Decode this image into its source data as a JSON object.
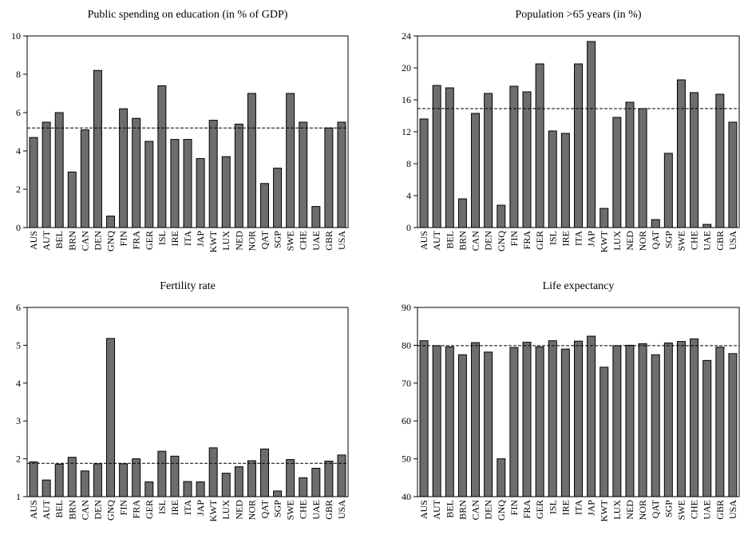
{
  "chart_data": [
    {
      "type": "bar",
      "title": "Public spending on education (in % of GDP)",
      "categories": [
        "AUS",
        "AUT",
        "BEL",
        "BRN",
        "CAN",
        "DEN",
        "GNQ",
        "FIN",
        "FRA",
        "GER",
        "ISL",
        "IRE",
        "ITA",
        "JAP",
        "KWT",
        "LUX",
        "NED",
        "NOR",
        "QAT",
        "SGP",
        "SWE",
        "CHE",
        "UAE",
        "GBR",
        "USA"
      ],
      "values": [
        4.7,
        5.5,
        6.0,
        2.9,
        5.1,
        8.2,
        0.6,
        6.2,
        5.7,
        4.5,
        7.4,
        4.6,
        4.6,
        3.6,
        5.6,
        3.7,
        5.4,
        7.0,
        2.3,
        3.1,
        7.0,
        5.5,
        1.1,
        5.2,
        5.5
      ],
      "ylim": [
        0,
        10
      ],
      "yticks": [
        0,
        2,
        4,
        6,
        8,
        10
      ],
      "reference_line": 5.2
    },
    {
      "type": "bar",
      "title": "Population >65 years (in %)",
      "categories": [
        "AUS",
        "AUT",
        "BEL",
        "BRN",
        "CAN",
        "DEN",
        "GNQ",
        "FIN",
        "FRA",
        "GER",
        "ISL",
        "IRE",
        "ITA",
        "JAP",
        "KWT",
        "LUX",
        "NED",
        "NOR",
        "QAT",
        "SGP",
        "SWE",
        "CHE",
        "UAE",
        "GBR",
        "USA"
      ],
      "values": [
        13.6,
        17.8,
        17.5,
        3.6,
        14.3,
        16.8,
        2.8,
        17.7,
        17.0,
        20.5,
        12.1,
        11.8,
        20.5,
        23.3,
        2.4,
        13.8,
        15.7,
        14.9,
        1.0,
        9.3,
        18.5,
        16.9,
        0.4,
        16.7,
        13.2
      ],
      "ylim": [
        0,
        24
      ],
      "yticks": [
        0,
        4,
        8,
        12,
        16,
        20,
        24
      ],
      "reference_line": 14.9
    },
    {
      "type": "bar",
      "title": "Fertility rate",
      "categories": [
        "AUS",
        "AUT",
        "BEL",
        "BRN",
        "CAN",
        "DEN",
        "GNQ",
        "FIN",
        "FRA",
        "GER",
        "ISL",
        "IRE",
        "ITA",
        "JAP",
        "KWT",
        "LUX",
        "NED",
        "NOR",
        "QAT",
        "SGP",
        "SWE",
        "CHE",
        "UAE",
        "GBR",
        "USA"
      ],
      "values": [
        1.92,
        1.44,
        1.86,
        2.04,
        1.68,
        1.87,
        5.18,
        1.87,
        2.0,
        1.39,
        2.2,
        2.07,
        1.4,
        1.39,
        2.29,
        1.62,
        1.79,
        1.95,
        2.26,
        1.15,
        1.98,
        1.5,
        1.75,
        1.94,
        2.1
      ],
      "ylim": [
        1,
        6
      ],
      "yticks": [
        1,
        2,
        3,
        4,
        5,
        6
      ],
      "reference_line": 1.88
    },
    {
      "type": "bar",
      "title": "Life expectancy",
      "categories": [
        "AUS",
        "AUT",
        "BEL",
        "BRN",
        "CAN",
        "DEN",
        "GNQ",
        "FIN",
        "FRA",
        "GER",
        "ISL",
        "IRE",
        "ITA",
        "JAP",
        "KWT",
        "LUX",
        "NED",
        "NOR",
        "QAT",
        "SGP",
        "SWE",
        "CHE",
        "UAE",
        "GBR",
        "USA"
      ],
      "values": [
        81.2,
        79.9,
        79.6,
        77.5,
        80.7,
        78.2,
        50.0,
        79.4,
        80.8,
        79.6,
        81.2,
        79.0,
        81.1,
        82.4,
        74.2,
        79.9,
        80.0,
        80.4,
        77.5,
        80.6,
        81.0,
        81.7,
        76.0,
        79.5,
        77.8
      ],
      "ylim": [
        40,
        90
      ],
      "yticks": [
        40,
        50,
        60,
        70,
        80,
        90
      ],
      "reference_line": 79.9
    }
  ]
}
